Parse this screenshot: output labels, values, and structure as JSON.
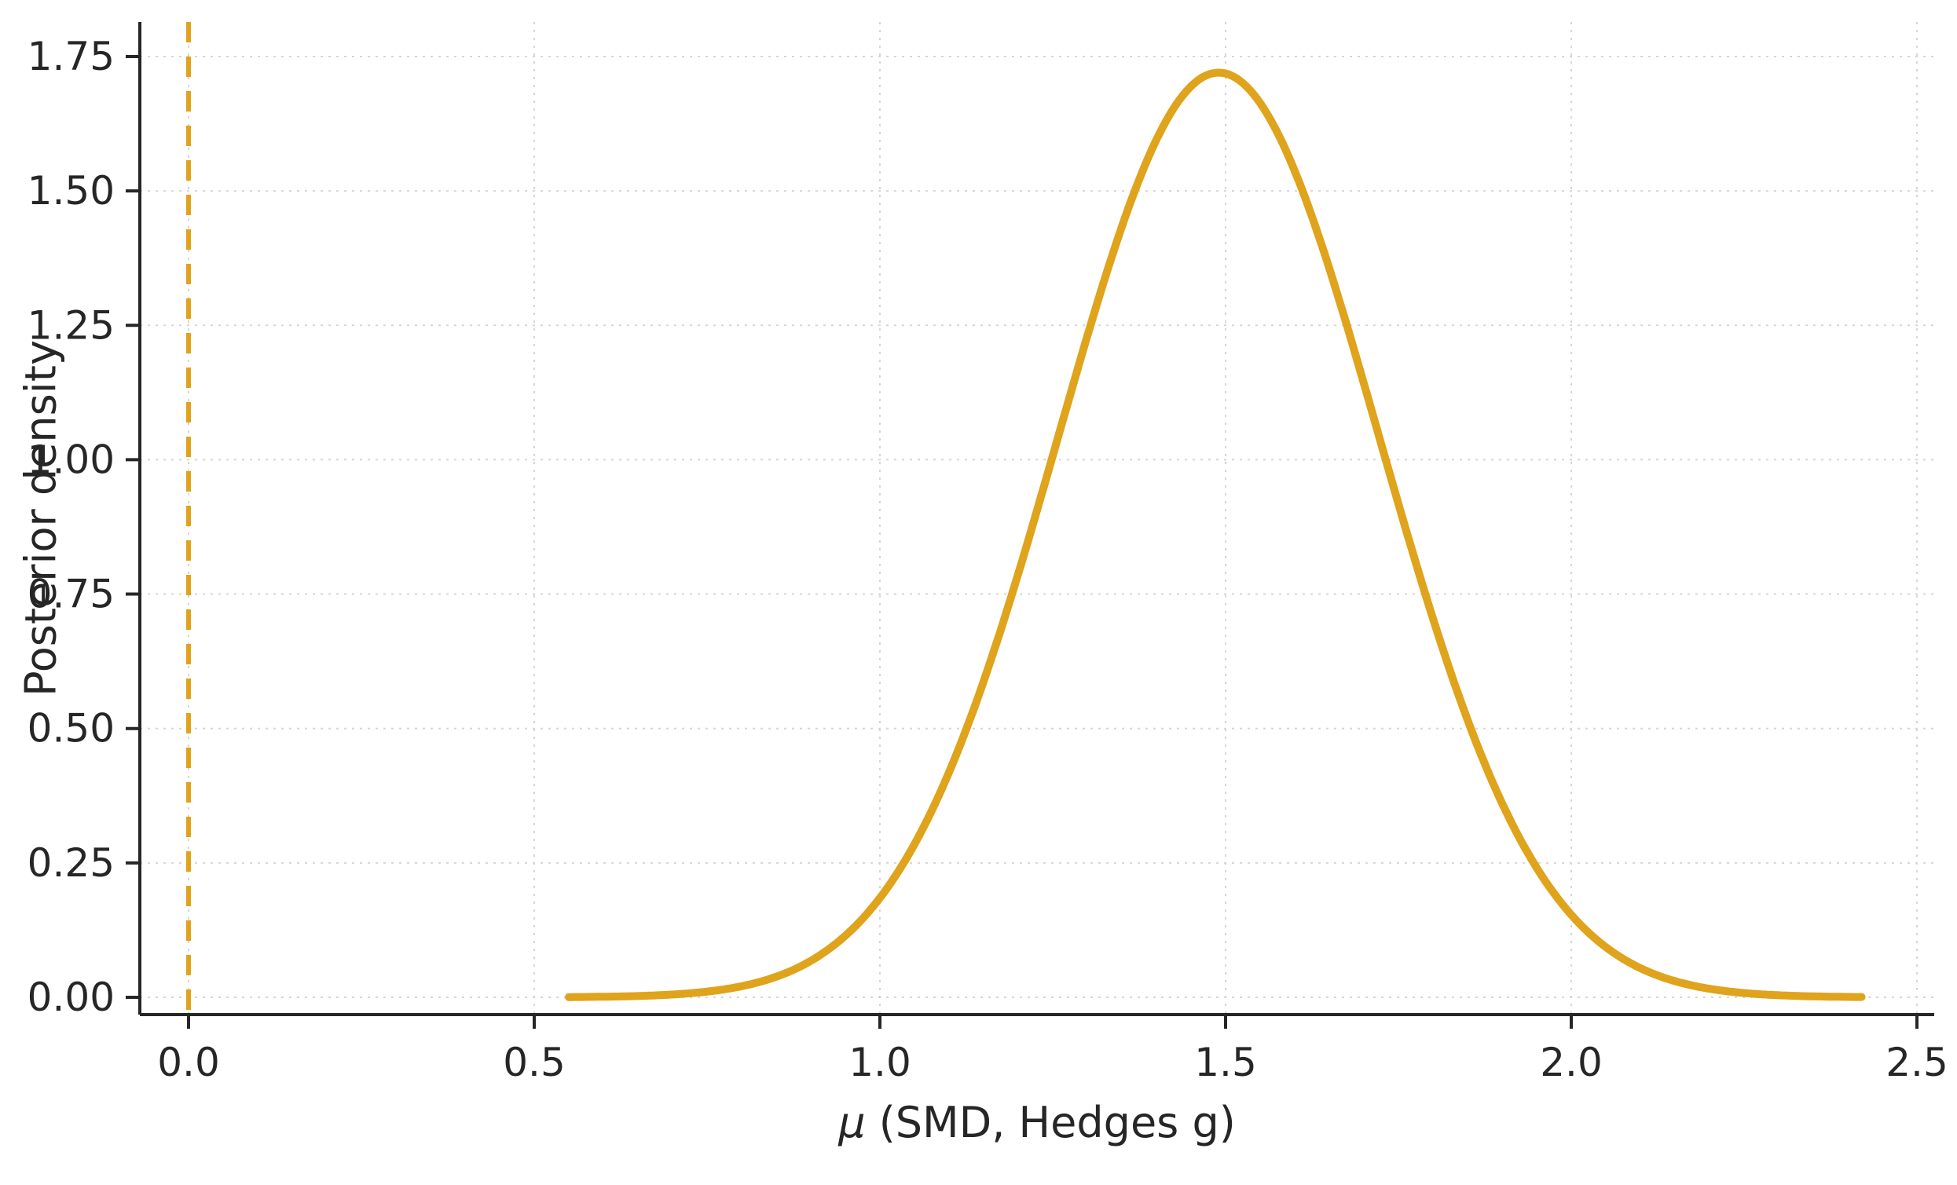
{
  "chart_data": {
    "type": "line",
    "title": "",
    "xlabel": "μ (SMD, Hedges g)",
    "xlabel_symbol": "μ",
    "xlabel_rest": " (SMD, Hedges g)",
    "ylabel": "Posterior density",
    "xlim": [
      -0.07,
      2.53
    ],
    "ylim": [
      -0.03,
      1.81
    ],
    "x_ticks": [
      0.0,
      0.5,
      1.0,
      1.5,
      2.0,
      2.5
    ],
    "x_tick_labels": [
      "0.0",
      "0.5",
      "1.0",
      "1.5",
      "2.0",
      "2.5"
    ],
    "y_ticks": [
      0.0,
      0.25,
      0.5,
      0.75,
      1.0,
      1.25,
      1.5,
      1.75
    ],
    "y_tick_labels": [
      "0.00",
      "0.25",
      "0.50",
      "0.75",
      "1.00",
      "1.25",
      "1.50",
      "1.75"
    ],
    "grid": true,
    "legend": false,
    "colors": {
      "background": "#ffffff",
      "axis": "#262626",
      "grid": "#d6d6d6",
      "accent": "#dfa31c"
    },
    "series": [
      {
        "name": "posterior-density-curve",
        "color": "#dfa31c",
        "line_width": 10,
        "distribution": {
          "shape": "normal",
          "mean": 1.49,
          "sd": 0.232,
          "peak_density": 1.72,
          "x_start": 0.55,
          "x_end": 2.42
        },
        "x": [
          0.55,
          0.6,
          0.7,
          0.8,
          0.9,
          1.0,
          1.1,
          1.2,
          1.3,
          1.4,
          1.49,
          1.6,
          1.7,
          1.8,
          1.9,
          2.0,
          2.1,
          2.2,
          2.3,
          2.4,
          2.42
        ],
        "y": [
          0.0,
          0.001,
          0.005,
          0.021,
          0.068,
          0.185,
          0.419,
          0.788,
          1.23,
          1.595,
          1.72,
          1.537,
          1.142,
          0.704,
          0.361,
          0.154,
          0.054,
          0.016,
          0.004,
          0.001,
          0.001
        ]
      }
    ],
    "reference_lines": [
      {
        "x": 0.0,
        "style": "dashed",
        "color": "#dfa31c",
        "line_width": 6
      }
    ]
  }
}
